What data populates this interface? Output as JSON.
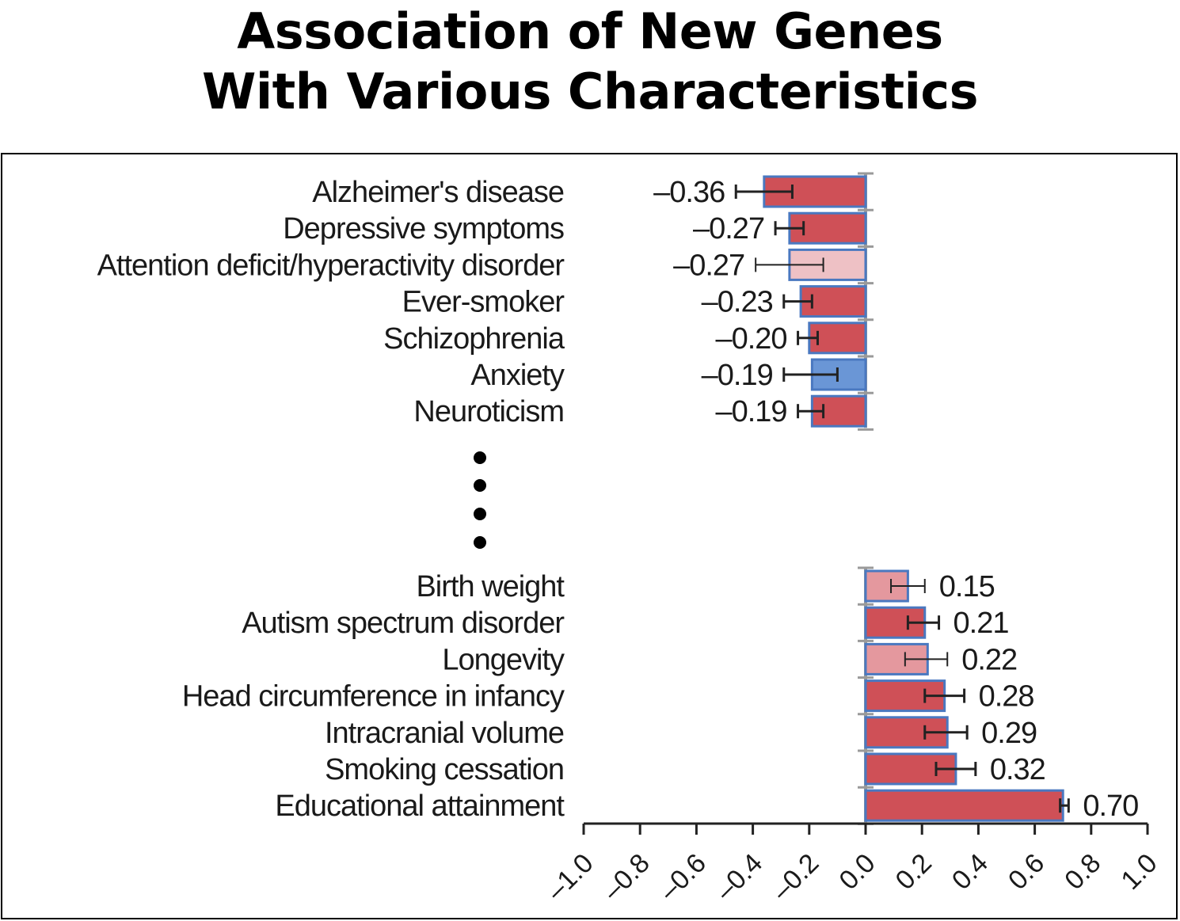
{
  "title_line1": "Association of New Genes",
  "title_line2": "With Various Characteristics",
  "chart_data": {
    "type": "bar",
    "orientation": "horizontal",
    "title": "Association of New Genes With Various Characteristics",
    "xlabel": "",
    "ylabel": "",
    "xlim": [
      -1.0,
      1.0
    ],
    "xticks": [
      "–1.0",
      "–0.8",
      "–0.6",
      "–0.4",
      "–0.2",
      "0.0",
      "0.2",
      "0.4",
      "0.6",
      "0.8",
      "1.0"
    ],
    "xtick_values": [
      -1.0,
      -0.8,
      -0.6,
      -0.4,
      -0.2,
      0.0,
      0.2,
      0.4,
      0.6,
      0.8,
      1.0
    ],
    "grid": false,
    "ellipsis_marker": "⋮ (omitted characteristics between groups)",
    "colors": {
      "strong_red": "#cf5057",
      "light_red": "#e4989e",
      "pale_red": "#eec1c5",
      "blue": "#6a96d6",
      "bar_border": "#4a78c0",
      "axis_gray": "#9a9a9a"
    },
    "groups": [
      {
        "name": "negative",
        "bars": [
          {
            "label": "Alzheimer's disease",
            "value": -0.36,
            "value_label": "–0.36",
            "err_low": -0.46,
            "err_high": -0.26,
            "fill": "strong_red"
          },
          {
            "label": "Depressive symptoms",
            "value": -0.27,
            "value_label": "–0.27",
            "err_low": -0.32,
            "err_high": -0.22,
            "fill": "strong_red"
          },
          {
            "label": "Attention deficit/hyperactivity disorder",
            "value": -0.27,
            "value_label": "–0.27",
            "err_low": -0.39,
            "err_high": -0.15,
            "fill": "pale_red"
          },
          {
            "label": "Ever-smoker",
            "value": -0.23,
            "value_label": "–0.23",
            "err_low": -0.29,
            "err_high": -0.19,
            "fill": "strong_red"
          },
          {
            "label": "Schizophrenia",
            "value": -0.2,
            "value_label": "–0.20",
            "err_low": -0.24,
            "err_high": -0.17,
            "fill": "strong_red"
          },
          {
            "label": "Anxiety",
            "value": -0.19,
            "value_label": "–0.19",
            "err_low": -0.29,
            "err_high": -0.1,
            "fill": "blue"
          },
          {
            "label": "Neuroticism",
            "value": -0.19,
            "value_label": "–0.19",
            "err_low": -0.24,
            "err_high": -0.15,
            "fill": "strong_red"
          }
        ]
      },
      {
        "name": "positive",
        "bars": [
          {
            "label": "Birth weight",
            "value": 0.15,
            "value_label": "0.15",
            "err_low": 0.09,
            "err_high": 0.21,
            "fill": "light_red"
          },
          {
            "label": "Autism spectrum disorder",
            "value": 0.21,
            "value_label": "0.21",
            "err_low": 0.15,
            "err_high": 0.26,
            "fill": "strong_red"
          },
          {
            "label": "Longevity",
            "value": 0.22,
            "value_label": "0.22",
            "err_low": 0.14,
            "err_high": 0.29,
            "fill": "light_red"
          },
          {
            "label": "Head circumference in infancy",
            "value": 0.28,
            "value_label": "0.28",
            "err_low": 0.21,
            "err_high": 0.35,
            "fill": "strong_red"
          },
          {
            "label": "Intracranial volume",
            "value": 0.29,
            "value_label": "0.29",
            "err_low": 0.21,
            "err_high": 0.36,
            "fill": "strong_red"
          },
          {
            "label": "Smoking cessation",
            "value": 0.32,
            "value_label": "0.32",
            "err_low": 0.25,
            "err_high": 0.39,
            "fill": "strong_red"
          },
          {
            "label": "Educational attainment",
            "value": 0.7,
            "value_label": "0.70",
            "err_low": 0.69,
            "err_high": 0.72,
            "fill": "strong_red"
          }
        ]
      }
    ]
  }
}
